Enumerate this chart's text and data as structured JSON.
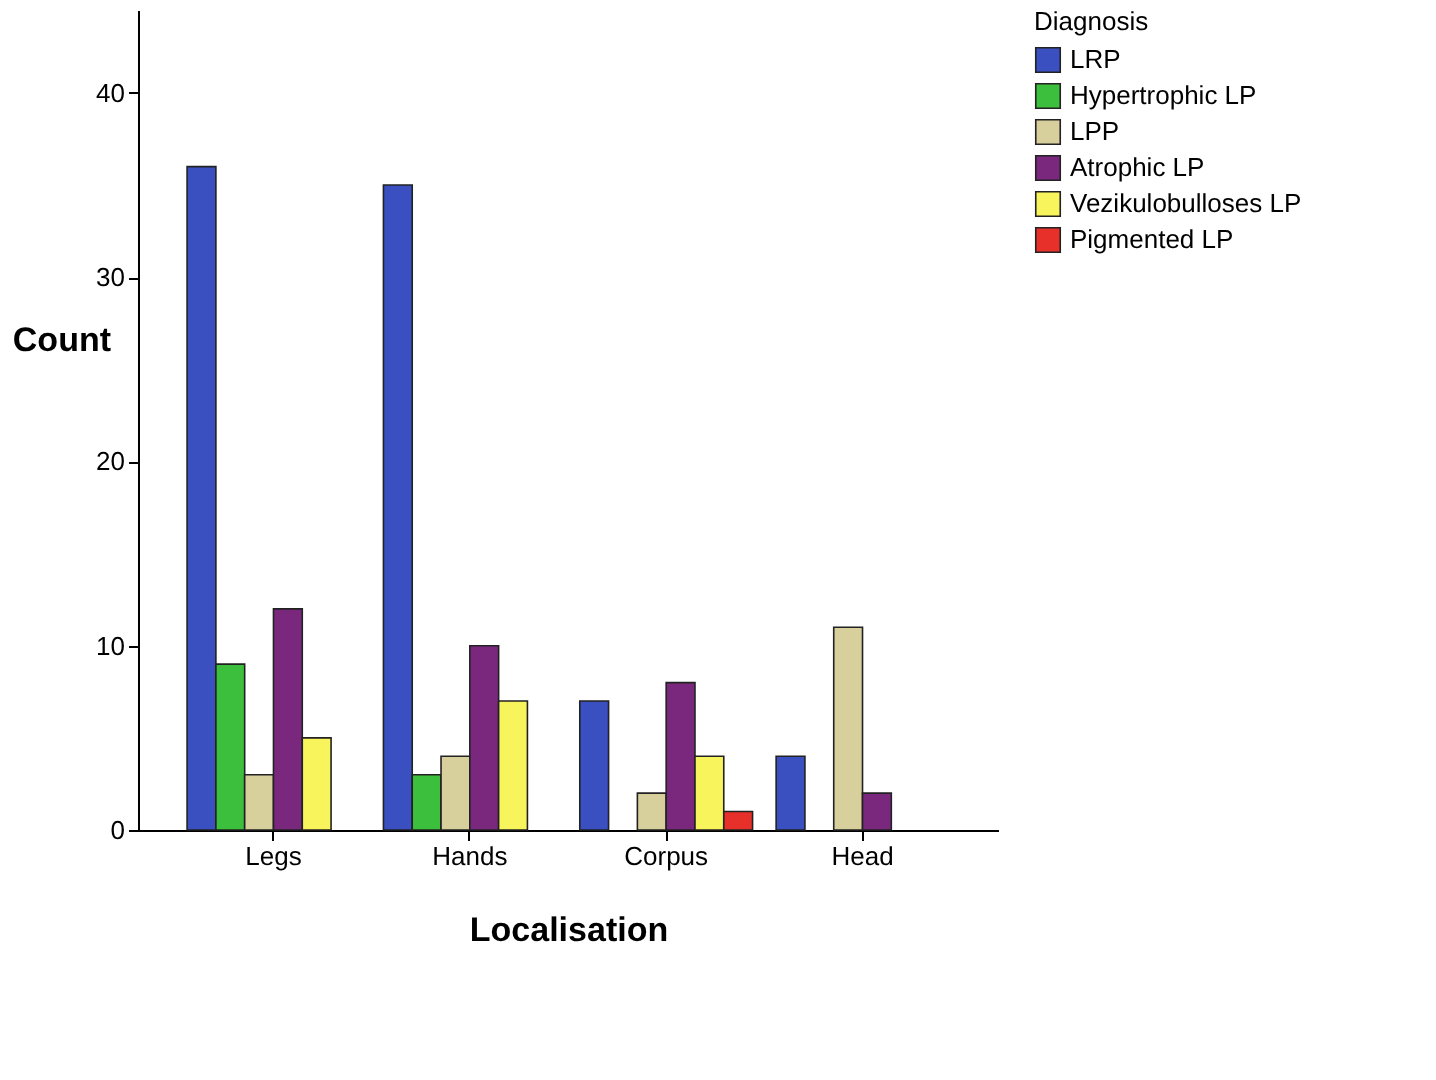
{
  "chart_data": {
    "type": "bar",
    "xlabel": "Localisation",
    "ylabel": "Count",
    "legend_title": "Diagnosis",
    "legend": "right",
    "grid": false,
    "categories": [
      "Legs",
      "Hands",
      "Corpus",
      "Head"
    ],
    "ylim": [
      0,
      44.5
    ],
    "yticks": [
      0,
      10,
      20,
      30,
      40
    ],
    "series": [
      {
        "name": "LRP",
        "color": "#3a4fc0",
        "values": [
          36,
          35,
          7,
          4
        ]
      },
      {
        "name": "Hypertrophic LP",
        "color": "#3cbf3c",
        "values": [
          9,
          3,
          null,
          null
        ]
      },
      {
        "name": "LPP",
        "color": "#d7cf9c",
        "values": [
          3,
          4,
          2,
          11
        ]
      },
      {
        "name": "Atrophic LP",
        "color": "#7a287e",
        "values": [
          12,
          10,
          8,
          2
        ]
      },
      {
        "name": "Vezikulobulloses LP",
        "color": "#f8f45c",
        "values": [
          5,
          7,
          4,
          null
        ]
      },
      {
        "name": "Pigmented LP",
        "color": "#e8302a",
        "values": [
          null,
          null,
          1,
          null
        ]
      }
    ]
  }
}
